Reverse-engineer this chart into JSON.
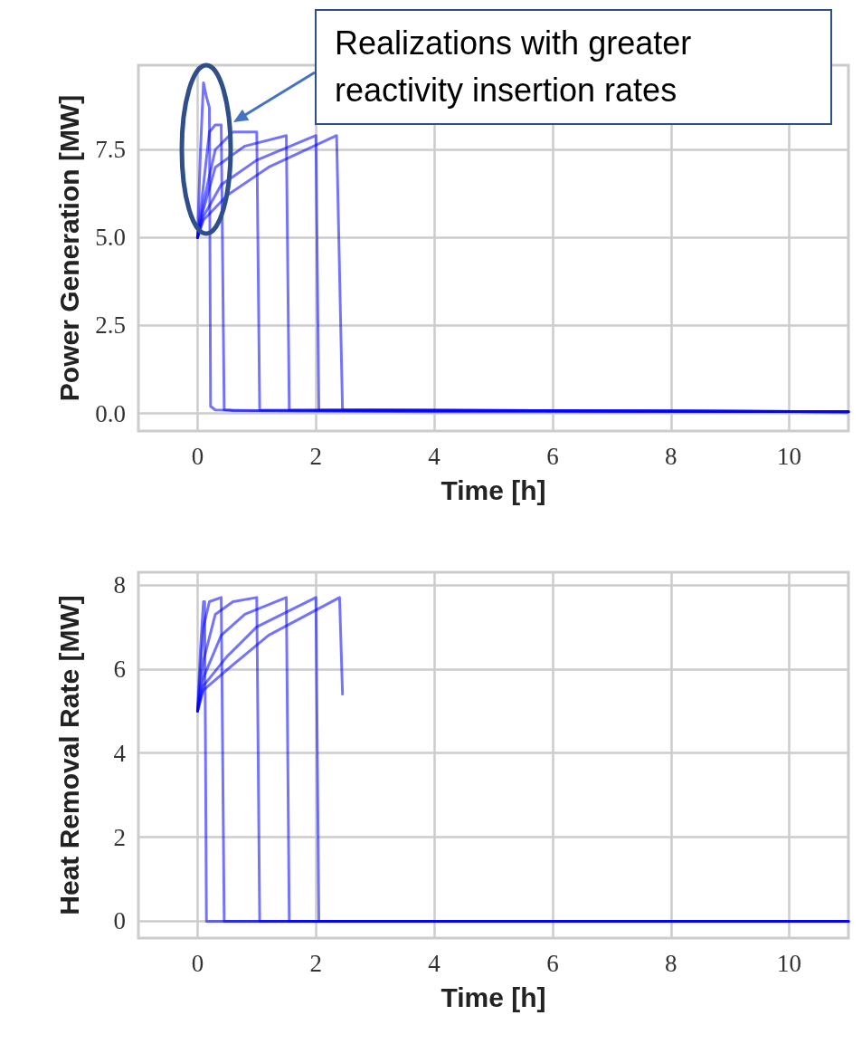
{
  "chart_data": [
    {
      "type": "line",
      "xlabel": "Time [h]",
      "ylabel": "Power Generation [MW]",
      "xlim": [
        -1,
        11
      ],
      "xticks": [
        0,
        2,
        4,
        6,
        8,
        10
      ],
      "ylim": [
        -0.5,
        9.9
      ],
      "yticks": [
        {
          "value": 0,
          "label": "0.0"
        },
        {
          "value": 2.5,
          "label": "2.5"
        },
        {
          "value": 5,
          "label": "5.0"
        },
        {
          "value": 7.5,
          "label": "7.5"
        }
      ],
      "grid": true,
      "marker": "none",
      "line_style": "solid",
      "annotations": [
        "Realizations with greater reactivity insertion rates"
      ],
      "series": [
        {
          "color": "#0000ff",
          "x": [
            0,
            0.05,
            0.1,
            0.15,
            0.2,
            0.22,
            0.3,
            1,
            4,
            11
          ],
          "values": [
            5.0,
            7.5,
            9.4,
            9.0,
            8.7,
            0.2,
            0.1,
            0.08,
            0.05,
            0.05
          ]
        },
        {
          "color": "#0000ff",
          "x": [
            0,
            0.1,
            0.2,
            0.3,
            0.4,
            0.45,
            0.6,
            11
          ],
          "values": [
            5.0,
            6.5,
            8.0,
            8.2,
            8.2,
            0.1,
            0.08,
            0.05
          ]
        },
        {
          "color": "#0000ff",
          "x": [
            0,
            0.1,
            0.3,
            0.6,
            1.0,
            1.05,
            11
          ],
          "values": [
            5.0,
            6.0,
            7.5,
            8.0,
            8.0,
            0.1,
            0.05
          ]
        },
        {
          "color": "#0000ff",
          "x": [
            0,
            0.1,
            0.3,
            0.8,
            1.5,
            1.55,
            11
          ],
          "values": [
            5.0,
            5.8,
            7.0,
            7.6,
            7.9,
            0.1,
            0.05
          ]
        },
        {
          "color": "#0000ff",
          "x": [
            0,
            0.1,
            0.4,
            1.0,
            2.0,
            2.05,
            11
          ],
          "values": [
            5.0,
            5.6,
            6.5,
            7.2,
            7.9,
            0.1,
            0.05
          ]
        },
        {
          "color": "#0000ff",
          "x": [
            0,
            0.1,
            0.5,
            1.2,
            2.35,
            2.45,
            11
          ],
          "values": [
            5.0,
            5.5,
            6.2,
            7.0,
            7.9,
            0.1,
            0.05
          ]
        }
      ]
    },
    {
      "type": "line",
      "xlabel": "Time [h]",
      "ylabel": "Heat Removal Rate [MW]",
      "xlim": [
        -1,
        11
      ],
      "xticks": [
        0,
        2,
        4,
        6,
        8,
        10
      ],
      "ylim": [
        -0.4,
        8.3
      ],
      "yticks": [
        0,
        2,
        4,
        6,
        8
      ],
      "grid": true,
      "marker": "none",
      "line_style": "solid",
      "series": [
        {
          "color": "#0000ff",
          "x": [
            0,
            0.05,
            0.1,
            0.12,
            0.15,
            11
          ],
          "values": [
            5.0,
            6.5,
            7.6,
            7.6,
            0,
            0
          ]
        },
        {
          "color": "#0000ff",
          "x": [
            0,
            0.1,
            0.2,
            0.4,
            0.45,
            11
          ],
          "values": [
            5.0,
            7.0,
            7.6,
            7.7,
            0,
            0
          ]
        },
        {
          "color": "#0000ff",
          "x": [
            0,
            0.1,
            0.3,
            0.6,
            1.0,
            1.05,
            11
          ],
          "values": [
            5.0,
            6.2,
            7.3,
            7.6,
            7.7,
            0,
            0
          ]
        },
        {
          "color": "#0000ff",
          "x": [
            0,
            0.1,
            0.4,
            0.8,
            1.5,
            1.55,
            11
          ],
          "values": [
            5.0,
            5.8,
            6.8,
            7.3,
            7.7,
            0,
            0
          ]
        },
        {
          "color": "#0000ff",
          "x": [
            0,
            0.1,
            0.5,
            1.0,
            2.0,
            2.05,
            11
          ],
          "values": [
            5.0,
            5.6,
            6.3,
            7.0,
            7.7,
            0,
            0
          ]
        },
        {
          "color": "#0000ff",
          "x": [
            0,
            0.1,
            0.6,
            1.2,
            2.4,
            2.45
          ],
          "values": [
            5.0,
            5.5,
            6.1,
            6.8,
            7.7,
            5.4
          ]
        }
      ]
    }
  ]
}
